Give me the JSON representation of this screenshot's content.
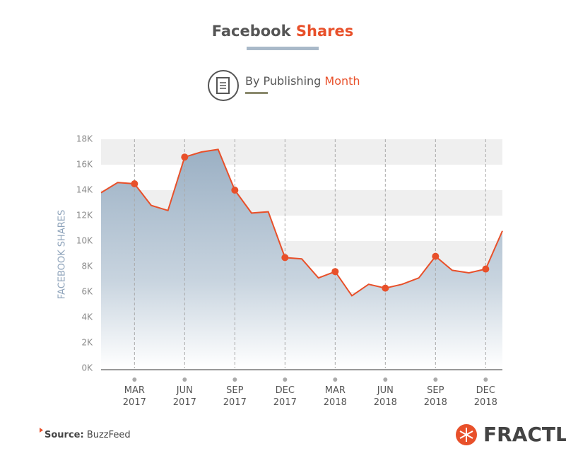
{
  "chart_data": {
    "type": "area",
    "title_parts": [
      "Facebook",
      "Shares"
    ],
    "subtitle_parts": [
      "By Publishing",
      "Month"
    ],
    "y_label": "FACEBOOK SHARES",
    "categories": [
      null,
      null,
      "MAR 2017",
      null,
      null,
      "JUN 2017",
      null,
      null,
      "SEP 2017",
      null,
      null,
      "DEC 2017",
      null,
      null,
      "MAR 2018",
      null,
      null,
      "JUN 2018",
      null,
      null,
      "SEP 2018",
      null,
      null,
      "DEC 2018",
      null
    ],
    "series": [
      {
        "name": "Facebook Shares",
        "color": "#e8502a",
        "values": [
          13.8,
          14.6,
          14.5,
          12.8,
          12.4,
          16.6,
          17.0,
          17.2,
          14.0,
          12.2,
          12.3,
          8.7,
          8.6,
          7.1,
          7.6,
          5.7,
          6.6,
          6.3,
          6.6,
          7.1,
          8.8,
          7.7,
          7.5,
          7.8,
          10.8
        ]
      }
    ],
    "ylim": [
      0,
      18
    ],
    "yticks": [
      {
        "value": 0,
        "label": "0K"
      },
      {
        "value": 2,
        "label": "2K"
      },
      {
        "value": 4,
        "label": "4K"
      },
      {
        "value": 6,
        "label": "6K"
      },
      {
        "value": 8,
        "label": "8K"
      },
      {
        "value": 10,
        "label": "10K"
      },
      {
        "value": 12,
        "label": "12K"
      },
      {
        "value": 14,
        "label": "14K"
      },
      {
        "value": 16,
        "label": "16K"
      },
      {
        "value": 18,
        "label": "18K"
      }
    ],
    "grid": true,
    "source_label": "Source:",
    "source": "BuzzFeed",
    "brand": "FRACTL"
  }
}
